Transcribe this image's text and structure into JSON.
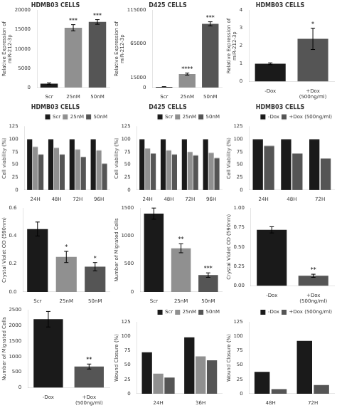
{
  "chart_data": [
    {
      "type": "bar",
      "title": "HDMB03 CELLS",
      "ylabel": "Relative Expression of\nmiR-212-3p",
      "categories": [
        "Scr",
        "25nM",
        "50nM"
      ],
      "values": [
        1000,
        15500,
        17000
      ],
      "colors": [
        "#1a1a1a",
        "#909090",
        "#555555"
      ],
      "errors": [
        200,
        800,
        600
      ],
      "annotations": [
        {
          "x": "25nM",
          "text": "***"
        },
        {
          "x": "50nM",
          "text": "***"
        }
      ],
      "ylim": [
        0,
        20000
      ],
      "yticks": [
        0,
        5000,
        10000,
        15000,
        20000
      ],
      "grid": false
    },
    {
      "type": "bar",
      "title": "D425 CELLS",
      "ylabel": "Relative Expression of\nmiR-212-3p",
      "categories": [
        "Scr",
        "25nM",
        "50nM"
      ],
      "values": [
        1000,
        20000,
        95000
      ],
      "colors": [
        "#1a1a1a",
        "#909090",
        "#555555"
      ],
      "errors": [
        200,
        1500,
        3000
      ],
      "annotations": [
        {
          "x": "25nM",
          "text": "****"
        },
        {
          "x": "50nM",
          "text": "***"
        }
      ],
      "ylim": [
        0,
        115000
      ],
      "yticks": [
        0,
        15000,
        65000,
        115000
      ],
      "grid": false
    },
    {
      "type": "bar",
      "title": "HDMB03 CELLS",
      "ylabel": "Relative Expression of\nmiR-212-3p",
      "categories": [
        "-Dox",
        "+Dox\n(500ng/ml)"
      ],
      "values": [
        1.0,
        2.4
      ],
      "colors": [
        "#1a1a1a",
        "#555555"
      ],
      "errors": [
        0.05,
        0.6
      ],
      "annotations": [
        {
          "x": "+Dox\n(500ng/ml)",
          "text": "*"
        }
      ],
      "ylim": [
        0,
        4
      ],
      "yticks": [
        0,
        1,
        2,
        3,
        4
      ],
      "grid": false
    },
    {
      "type": "bar",
      "title": "HDMB03 CELLS",
      "ylabel": "Cell viability (%)",
      "categories": [
        "24H",
        "48H",
        "72H",
        "96H"
      ],
      "series": [
        {
          "name": "Scr",
          "color": "#1a1a1a",
          "values": [
            100,
            100,
            100,
            100
          ]
        },
        {
          "name": "25nM",
          "color": "#909090",
          "values": [
            85,
            83,
            80,
            78
          ]
        },
        {
          "name": "50nM",
          "color": "#555555",
          "values": [
            70,
            70,
            65,
            52
          ]
        }
      ],
      "ylim": [
        0,
        125
      ],
      "yticks": [
        0,
        25,
        50,
        75,
        100,
        125
      ],
      "grid": false,
      "legend": "upper right"
    },
    {
      "type": "bar",
      "title": "D425 CELLS",
      "ylabel": "Cell viability (%)",
      "categories": [
        "24H",
        "48H",
        "72H",
        "96H"
      ],
      "series": [
        {
          "name": "Scr",
          "color": "#1a1a1a",
          "values": [
            100,
            100,
            100,
            100
          ]
        },
        {
          "name": "25nM",
          "color": "#909090",
          "values": [
            82,
            78,
            75,
            73
          ]
        },
        {
          "name": "50nM",
          "color": "#555555",
          "values": [
            72,
            70,
            68,
            63
          ]
        }
      ],
      "ylim": [
        0,
        125
      ],
      "yticks": [
        0,
        25,
        50,
        75,
        100,
        125
      ],
      "grid": false,
      "legend": "upper right"
    },
    {
      "type": "bar",
      "title": "HDMB03 CELLS",
      "ylabel": "Cell Viability (%)",
      "categories": [
        "24H",
        "48H",
        "72H"
      ],
      "series": [
        {
          "name": "-Dox",
          "color": "#1a1a1a",
          "values": [
            100,
            100,
            100
          ]
        },
        {
          "name": "+Dox (500ng/ml)",
          "color": "#555555",
          "values": [
            87,
            72,
            62
          ]
        }
      ],
      "ylim": [
        0,
        125
      ],
      "yticks": [
        0,
        25,
        50,
        75,
        100,
        125
      ],
      "grid": false,
      "legend": "upper right"
    },
    {
      "type": "bar",
      "ylabel": "Crystal Violet OD (590nm)",
      "categories": [
        "Scr",
        "25nM",
        "50nM"
      ],
      "values": [
        0.45,
        0.25,
        0.18
      ],
      "colors": [
        "#1a1a1a",
        "#909090",
        "#555555"
      ],
      "errors": [
        0.05,
        0.04,
        0.03
      ],
      "annotations": [
        {
          "x": "25nM",
          "text": "*"
        },
        {
          "x": "50nM",
          "text": "*"
        }
      ],
      "ylim": [
        0,
        0.6
      ],
      "yticks": [
        {
          "value": 0.0,
          "label": "0.0"
        },
        0.2,
        0.4,
        0.6
      ],
      "grid": false
    },
    {
      "type": "bar",
      "ylabel": "Number of Migrated Cells",
      "categories": [
        "Scr",
        "25nM",
        "50nM"
      ],
      "values": [
        1400,
        780,
        300
      ],
      "colors": [
        "#1a1a1a",
        "#909090",
        "#555555"
      ],
      "errors": [
        100,
        80,
        40
      ],
      "annotations": [
        {
          "x": "25nM",
          "text": "**"
        },
        {
          "x": "50nM",
          "text": "***"
        }
      ],
      "ylim": [
        0,
        1500
      ],
      "yticks": [
        0,
        500,
        1000,
        1500
      ],
      "grid": false
    },
    {
      "type": "bar",
      "ylabel": "Crystal Violet OD (590nm)",
      "categories": [
        "-Dox",
        "+Dox\n(500ng/ml)"
      ],
      "values": [
        0.72,
        0.13
      ],
      "colors": [
        "#1a1a1a",
        "#555555"
      ],
      "errors": [
        0.04,
        0.02
      ],
      "annotations": [
        {
          "x": "+Dox\n(500ng/ml)",
          "text": "**"
        }
      ],
      "ylim": [
        0,
        1.0
      ],
      "yticks": [
        {
          "value": 0.0,
          "label": "0.00"
        },
        0.25,
        {
          "value": 0.5,
          "label": "0.50"
        },
        0.75,
        {
          "value": 1.0,
          "label": "1.00"
        }
      ],
      "grid": false
    },
    {
      "type": "bar",
      "ylabel": "Number of Migrated Cells",
      "categories": [
        "-Dox",
        "+Dox\n(500ng/ml)"
      ],
      "values": [
        2200,
        680
      ],
      "colors": [
        "#1a1a1a",
        "#555555"
      ],
      "errors": [
        250,
        80
      ],
      "annotations": [
        {
          "x": "+Dox\n(500ng/ml)",
          "text": "**"
        }
      ],
      "ylim": [
        0,
        2500
      ],
      "yticks": [
        0,
        500,
        1000,
        1500,
        2000,
        2500
      ],
      "grid": false
    },
    {
      "type": "bar",
      "ylabel": "Wound Closure (%)",
      "categories": [
        "24H",
        "36H"
      ],
      "series": [
        {
          "name": "Scr",
          "color": "#1a1a1a",
          "values": [
            72,
            98
          ]
        },
        {
          "name": "25nM",
          "color": "#909090",
          "values": [
            35,
            65
          ]
        },
        {
          "name": "50nM",
          "color": "#555555",
          "values": [
            28,
            58
          ]
        }
      ],
      "ylim": [
        0,
        125
      ],
      "yticks": [
        0,
        25,
        50,
        75,
        100,
        125
      ],
      "grid": false,
      "legend": "upper right"
    },
    {
      "type": "bar",
      "ylabel": "Wound Closure (%)",
      "categories": [
        "48H",
        "72H"
      ],
      "series": [
        {
          "name": "-Dox",
          "color": "#1a1a1a",
          "values": [
            38,
            92
          ]
        },
        {
          "name": "+Dox (500ng/ml)",
          "color": "#555555",
          "values": [
            8,
            15
          ]
        }
      ],
      "ylim": [
        0,
        125
      ],
      "yticks": [
        0,
        25,
        50,
        75,
        100,
        125
      ],
      "grid": false,
      "legend": "upper right"
    }
  ]
}
